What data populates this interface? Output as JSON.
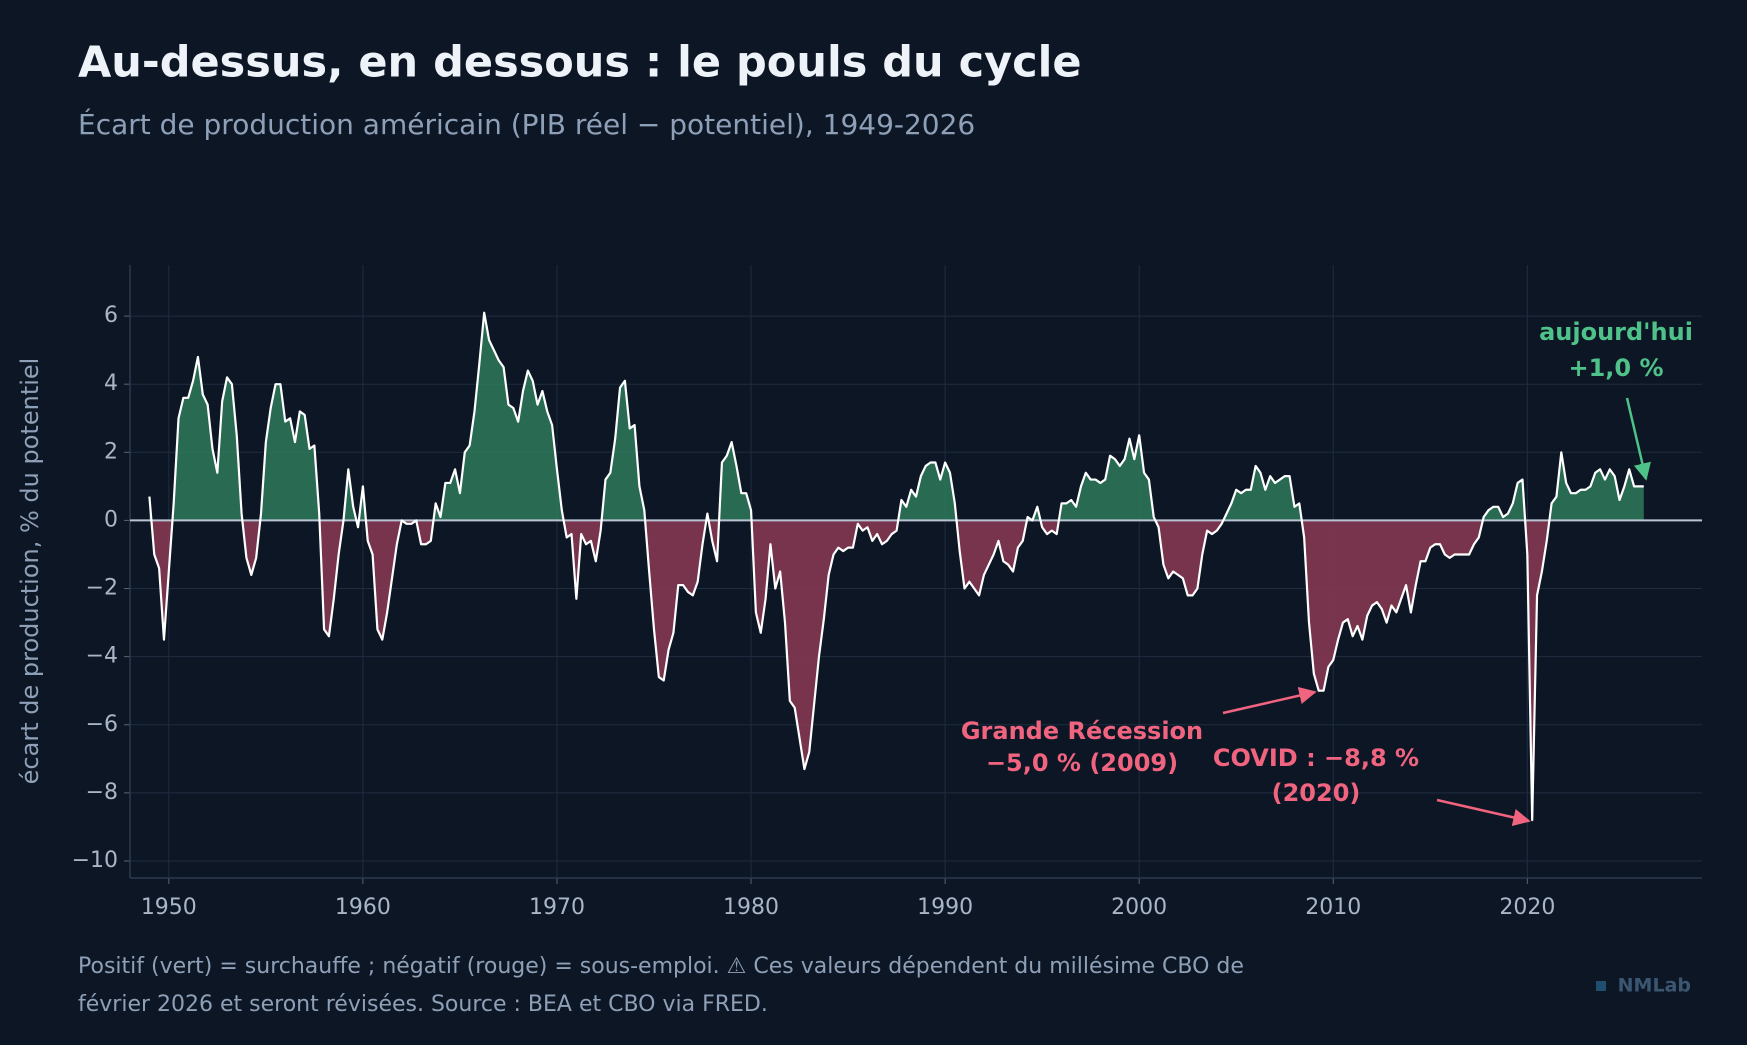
{
  "chart_data": {
    "type": "area",
    "title": "Au-dessus, en dessous : le pouls du cycle",
    "subtitle": "Écart de production américain (PIB réel − potentiel), 1949-2026",
    "ylabel": "écart de production, % du potentiel",
    "note": [
      "Positif (vert) = surchauffe ; négatif (rouge) = sous-emploi. ⚠ Ces valeurs dépendent du millésime CBO de",
      "février 2026 et seront révisées. Source : BEA et CBO via FRED."
    ],
    "brand": "NMLab",
    "annotations": [
      "Grande Récession",
      "−5,0 % (2009)",
      "COVID : −8,8 %",
      "(2020)",
      "aujourd'hui",
      "+1,0 %"
    ],
    "color": "#ffffff",
    "positive_color": "#2e7a5a",
    "negative_color": "#8b3a53",
    "grid": true,
    "xlim": [
      1948,
      2029
    ],
    "xticks": [
      1950,
      1960,
      1970,
      1980,
      1990,
      2000,
      2010,
      2020
    ],
    "ylim": [
      -10.5,
      7.5
    ],
    "yticks": [
      {
        "value": -10,
        "label": "−10"
      },
      {
        "value": -8,
        "label": "−8"
      },
      {
        "value": -6,
        "label": "−6"
      },
      {
        "value": -4,
        "label": "−4"
      },
      {
        "value": -2,
        "label": "−2"
      },
      0,
      2,
      4,
      6
    ],
    "x": [
      1949,
      1949.25,
      1949.5,
      1949.75,
      1950,
      1950.25,
      1950.5,
      1950.75,
      1951,
      1951.25,
      1951.5,
      1951.75,
      1952,
      1952.25,
      1952.5,
      1952.75,
      1953,
      1953.25,
      1953.5,
      1953.75,
      1954,
      1954.25,
      1954.5,
      1954.75,
      1955,
      1955.25,
      1955.5,
      1955.75,
      1956,
      1956.25,
      1956.5,
      1956.75,
      1957,
      1957.25,
      1957.5,
      1957.75,
      1958,
      1958.25,
      1958.5,
      1958.75,
      1959,
      1959.25,
      1959.5,
      1959.75,
      1960,
      1960.25,
      1960.5,
      1960.75,
      1961,
      1961.25,
      1961.5,
      1961.75,
      1962,
      1962.25,
      1962.5,
      1962.75,
      1963,
      1963.25,
      1963.5,
      1963.75,
      1964,
      1964.25,
      1964.5,
      1964.75,
      1965,
      1965.25,
      1965.5,
      1965.75,
      1966,
      1966.25,
      1966.5,
      1966.75,
      1967,
      1967.25,
      1967.5,
      1967.75,
      1968,
      1968.25,
      1968.5,
      1968.75,
      1969,
      1969.25,
      1969.5,
      1969.75,
      1970,
      1970.25,
      1970.5,
      1970.75,
      1971,
      1971.25,
      1971.5,
      1971.75,
      1972,
      1972.25,
      1972.5,
      1972.75,
      1973,
      1973.25,
      1973.5,
      1973.75,
      1974,
      1974.25,
      1974.5,
      1974.75,
      1975,
      1975.25,
      1975.5,
      1975.75,
      1976,
      1976.25,
      1976.5,
      1976.75,
      1977,
      1977.25,
      1977.5,
      1977.75,
      1978,
      1978.25,
      1978.5,
      1978.75,
      1979,
      1979.25,
      1979.5,
      1979.75,
      1980,
      1980.25,
      1980.5,
      1980.75,
      1981,
      1981.25,
      1981.5,
      1981.75,
      1982,
      1982.25,
      1982.5,
      1982.75,
      1983,
      1983.25,
      1983.5,
      1983.75,
      1984,
      1984.25,
      1984.5,
      1984.75,
      1985,
      1985.25,
      1985.5,
      1985.75,
      1986,
      1986.25,
      1986.5,
      1986.75,
      1987,
      1987.25,
      1987.5,
      1987.75,
      1988,
      1988.25,
      1988.5,
      1988.75,
      1989,
      1989.25,
      1989.5,
      1989.75,
      1990,
      1990.25,
      1990.5,
      1990.75,
      1991,
      1991.25,
      1991.5,
      1991.75,
      1992,
      1992.25,
      1992.5,
      1992.75,
      1993,
      1993.25,
      1993.5,
      1993.75,
      1994,
      1994.25,
      1994.5,
      1994.75,
      1995,
      1995.25,
      1995.5,
      1995.75,
      1996,
      1996.25,
      1996.5,
      1996.75,
      1997,
      1997.25,
      1997.5,
      1997.75,
      1998,
      1998.25,
      1998.5,
      1998.75,
      1999,
      1999.25,
      1999.5,
      1999.75,
      2000,
      2000.25,
      2000.5,
      2000.75,
      2001,
      2001.25,
      2001.5,
      2001.75,
      2002,
      2002.25,
      2002.5,
      2002.75,
      2003,
      2003.25,
      2003.5,
      2003.75,
      2004,
      2004.25,
      2004.5,
      2004.75,
      2005,
      2005.25,
      2005.5,
      2005.75,
      2006,
      2006.25,
      2006.5,
      2006.75,
      2007,
      2007.25,
      2007.5,
      2007.75,
      2008,
      2008.25,
      2008.5,
      2008.75,
      2009,
      2009.25,
      2009.5,
      2009.75,
      2010,
      2010.25,
      2010.5,
      2010.75,
      2011,
      2011.25,
      2011.5,
      2011.75,
      2012,
      2012.25,
      2012.5,
      2012.75,
      2013,
      2013.25,
      2013.5,
      2013.75,
      2014,
      2014.25,
      2014.5,
      2014.75,
      2015,
      2015.25,
      2015.5,
      2015.75,
      2016,
      2016.25,
      2016.5,
      2016.75,
      2017,
      2017.25,
      2017.5,
      2017.75,
      2018,
      2018.25,
      2018.5,
      2018.75,
      2019,
      2019.25,
      2019.5,
      2019.75,
      2020,
      2020.25,
      2020.5,
      2020.75,
      2021,
      2021.25,
      2021.5,
      2021.75,
      2022,
      2022.25,
      2022.5,
      2022.75,
      2023,
      2023.25,
      2023.5,
      2023.75,
      2024,
      2024.25,
      2024.5,
      2024.75,
      2025,
      2025.25,
      2025.5,
      2025.75,
      2026
    ],
    "values": [
      0.7,
      -1.0,
      -1.4,
      -3.5,
      -1.5,
      0.5,
      3.0,
      3.6,
      3.6,
      4.1,
      4.8,
      3.7,
      3.4,
      2.1,
      1.4,
      3.5,
      4.2,
      4.0,
      2.5,
      0.2,
      -1.1,
      -1.6,
      -1.1,
      0.2,
      2.3,
      3.3,
      4.0,
      4.0,
      2.9,
      3.0,
      2.3,
      3.2,
      3.1,
      2.1,
      2.2,
      0.2,
      -3.2,
      -3.4,
      -2.3,
      -1.0,
      0.0,
      1.5,
      0.4,
      -0.2,
      1.0,
      -0.6,
      -1.0,
      -3.2,
      -3.5,
      -2.7,
      -1.7,
      -0.7,
      0.0,
      -0.1,
      -0.1,
      0.0,
      -0.7,
      -0.7,
      -0.6,
      0.5,
      0.1,
      1.1,
      1.1,
      1.5,
      0.8,
      2.0,
      2.2,
      3.2,
      4.6,
      6.1,
      5.3,
      5.0,
      4.7,
      4.5,
      3.4,
      3.3,
      2.9,
      3.8,
      4.4,
      4.1,
      3.4,
      3.8,
      3.2,
      2.8,
      1.5,
      0.3,
      -0.5,
      -0.4,
      -2.3,
      -0.4,
      -0.7,
      -0.6,
      -1.2,
      -0.3,
      1.2,
      1.4,
      2.4,
      3.9,
      4.1,
      2.7,
      2.8,
      1.0,
      0.3,
      -1.5,
      -3.2,
      -4.6,
      -4.7,
      -3.8,
      -3.3,
      -1.9,
      -1.9,
      -2.1,
      -2.2,
      -1.8,
      -0.7,
      0.2,
      -0.6,
      -1.2,
      1.7,
      1.9,
      2.3,
      1.6,
      0.8,
      0.8,
      0.3,
      -2.7,
      -3.3,
      -2.3,
      -0.7,
      -2.0,
      -1.5,
      -3.0,
      -5.3,
      -5.5,
      -6.4,
      -7.3,
      -6.8,
      -5.4,
      -4.0,
      -2.9,
      -1.6,
      -1.0,
      -0.8,
      -0.9,
      -0.8,
      -0.8,
      -0.1,
      -0.3,
      -0.2,
      -0.6,
      -0.4,
      -0.7,
      -0.6,
      -0.4,
      -0.3,
      0.6,
      0.4,
      0.9,
      0.7,
      1.3,
      1.6,
      1.7,
      1.7,
      1.2,
      1.7,
      1.4,
      0.5,
      -0.9,
      -2.0,
      -1.8,
      -2.0,
      -2.2,
      -1.6,
      -1.3,
      -1.0,
      -0.6,
      -1.2,
      -1.3,
      -1.5,
      -0.8,
      -0.6,
      0.1,
      0.0,
      0.4,
      -0.2,
      -0.4,
      -0.3,
      -0.4,
      0.5,
      0.5,
      0.6,
      0.4,
      1.0,
      1.4,
      1.2,
      1.2,
      1.1,
      1.2,
      1.9,
      1.8,
      1.6,
      1.8,
      2.4,
      1.8,
      2.5,
      1.4,
      1.2,
      0.1,
      -0.2,
      -1.3,
      -1.7,
      -1.5,
      -1.6,
      -1.7,
      -2.2,
      -2.2,
      -2.0,
      -1.0,
      -0.3,
      -0.4,
      -0.3,
      -0.1,
      0.2,
      0.5,
      0.9,
      0.8,
      0.9,
      0.9,
      1.6,
      1.4,
      0.9,
      1.3,
      1.1,
      1.2,
      1.3,
      1.3,
      0.4,
      0.5,
      -0.5,
      -3.0,
      -4.5,
      -5.0,
      -5.0,
      -4.3,
      -4.1,
      -3.5,
      -3.0,
      -2.9,
      -3.4,
      -3.1,
      -3.5,
      -2.8,
      -2.5,
      -2.4,
      -2.6,
      -3.0,
      -2.5,
      -2.7,
      -2.3,
      -1.9,
      -2.7,
      -1.9,
      -1.2,
      -1.2,
      -0.8,
      -0.7,
      -0.7,
      -1.0,
      -1.1,
      -1.0,
      -1.0,
      -1.0,
      -1.0,
      -0.7,
      -0.5,
      0.1,
      0.3,
      0.4,
      0.4,
      0.1,
      0.2,
      0.5,
      1.1,
      1.2,
      -1.0,
      -8.8,
      -2.2,
      -1.5,
      -0.6,
      0.5,
      0.7,
      2.0,
      1.1,
      0.8,
      0.8,
      0.9,
      0.9,
      1.0,
      1.4,
      1.5,
      1.2,
      1.5,
      1.3,
      0.6,
      1.0,
      1.5,
      1.0,
      1.0,
      1.0
    ]
  }
}
